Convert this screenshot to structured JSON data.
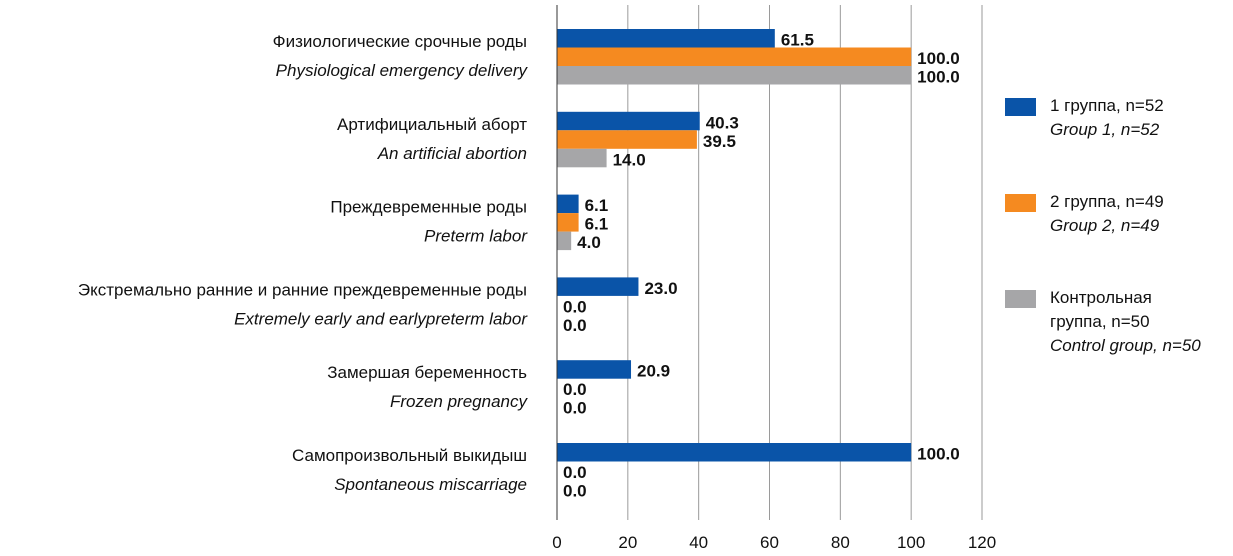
{
  "chart_data": {
    "type": "bar",
    "orientation": "horizontal",
    "categories": [
      {
        "ru": "Физиологические срочные роды",
        "en": "Physiological emergency delivery"
      },
      {
        "ru": "Артифициальный аборт",
        "en": "An artificial abortion"
      },
      {
        "ru": "Преждевременные роды",
        "en": "Preterm labor"
      },
      {
        "ru": "Экстремально ранние и ранние преждевременные роды",
        "en": "Extremely early and earlypreterm labor"
      },
      {
        "ru": "Замершая беременность",
        "en": "Frozen pregnancy"
      },
      {
        "ru": "Самопроизвольный выкидыш",
        "en": "Spontaneous miscarriage"
      }
    ],
    "series": [
      {
        "name": "1 группа, n=52",
        "name_en": "Group 1, n=52",
        "color": "#0a54a8",
        "values": [
          61.5,
          40.3,
          6.1,
          23.0,
          20.9,
          100.0
        ],
        "labels": [
          "61.5",
          "40.3",
          "6.1",
          "23.0",
          "20.9",
          "100.0"
        ]
      },
      {
        "name": "2 группа, n=49",
        "name_en": "Group 2, n=49",
        "color": "#f58a20",
        "values": [
          100.0,
          39.5,
          6.1,
          0.0,
          0.0,
          0.0
        ],
        "labels": [
          "100.0",
          "39.5",
          "6.1",
          "0.0",
          "0.0",
          "0.0"
        ]
      },
      {
        "name": "Контрольная группа, n=50",
        "name_en": "Control group, n=50",
        "color": "#a6a6a8",
        "values": [
          100.0,
          14.0,
          4.0,
          0.0,
          0.0,
          0.0
        ],
        "labels": [
          "100.0",
          "14.0",
          "4.0",
          "0.0",
          "0.0",
          "0.0"
        ]
      }
    ],
    "xlim": [
      0,
      120
    ],
    "xticks": [
      0,
      20,
      40,
      60,
      80,
      100,
      120
    ],
    "grid": "vertical",
    "legend_position": "right",
    "title": "",
    "xlabel": "",
    "ylabel": ""
  },
  "legend": {
    "items": [
      {
        "ru": "1 группа, n=52",
        "en": "Group 1, n=52",
        "color": "#0a54a8"
      },
      {
        "ru": "2 группа, n=49",
        "en": "Group 2, n=49",
        "color": "#f58a20"
      },
      {
        "ru": "Контрольная группа, n=50",
        "en": "Control group, n=50",
        "color": "#a6a6a8"
      }
    ]
  }
}
